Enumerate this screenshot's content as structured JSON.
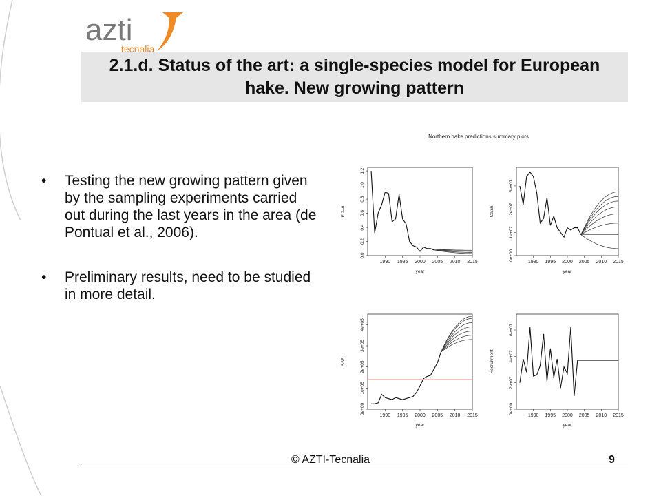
{
  "logo": {
    "brand": "azti",
    "sub": "tecnalia",
    "mark_color": "#f08a24",
    "text_color": "#7a7a7a"
  },
  "title": "2.1.d. Status of the art: a single-species model for European hake. New growing pattern",
  "bullets": [
    "Testing the new growing pattern given by the sampling experiments carried out during the last years in the area (de Pontual et al., 2006).",
    "Preliminary results, need to be studied in more detail."
  ],
  "footer": {
    "copyright": "© AZTI-Tecnalia",
    "page": "9"
  },
  "chart_data": [
    {
      "type": "line",
      "title": "Northern hake predictions summary plots",
      "xlabel": "year",
      "ylabel": "F 2–6",
      "xlim": [
        1985,
        2015
      ],
      "ylim": [
        0,
        1.25
      ],
      "xticks": [
        1990,
        1995,
        2000,
        2005,
        2010,
        2015
      ],
      "yticks": [
        0.0,
        0.2,
        0.4,
        0.6,
        0.8,
        1.0,
        1.2
      ],
      "ytick_labels": [
        "0.0",
        "0.2",
        "0.4",
        "0.6",
        "0.8",
        "1.0",
        "1.2"
      ],
      "series": [
        {
          "x": [
            1986,
            1987,
            1988,
            1989,
            1990,
            1991,
            1992,
            1993,
            1994,
            1995,
            1996,
            1997,
            1998,
            1999,
            2000,
            2001,
            2002,
            2003,
            2004
          ],
          "values": [
            1.2,
            0.32,
            0.6,
            0.72,
            0.9,
            0.88,
            0.48,
            0.52,
            0.87,
            0.52,
            0.45,
            0.2,
            0.14,
            0.12,
            0.06,
            0.12,
            0.1,
            0.1,
            0.08
          ]
        }
      ],
      "projections": {
        "x": [
          2004,
          2015
        ],
        "start": 0.08,
        "ends": [
          0.03,
          0.045,
          0.06,
          0.075,
          0.09
        ]
      }
    },
    {
      "type": "line",
      "xlabel": "year",
      "ylabel": "Catch",
      "xlim": [
        1985,
        2015
      ],
      "ylim": [
        0,
        38000000
      ],
      "xticks": [
        1990,
        1995,
        2000,
        2005,
        2010,
        2015
      ],
      "yticks": [
        0,
        10000000,
        20000000,
        30000000
      ],
      "ytick_labels": [
        "0e+00",
        "1e+07",
        "2e+07",
        "3e+07"
      ],
      "series": [
        {
          "x": [
            1986,
            1987,
            1988,
            1989,
            1990,
            1991,
            1992,
            1993,
            1994,
            1995,
            1996,
            1997,
            1998,
            1999,
            2000,
            2001,
            2002,
            2003,
            2004
          ],
          "values": [
            30000000,
            22000000,
            34000000,
            36000000,
            34000000,
            27000000,
            14000000,
            16000000,
            25000000,
            13000000,
            17000000,
            12000000,
            10000000,
            8000000,
            12000000,
            11000000,
            12000000,
            12000000,
            9000000
          ]
        }
      ],
      "projections": {
        "x": [
          2004,
          2015
        ],
        "start": 9000000,
        "ends": [
          3000000,
          9000000,
          14000000,
          18000000,
          21000000,
          23500000,
          25500000,
          27500000
        ]
      }
    },
    {
      "type": "line",
      "xlabel": "year",
      "ylabel": "SSB",
      "xlim": [
        1985,
        2015
      ],
      "ylim": [
        0,
        450000
      ],
      "xticks": [
        1990,
        1995,
        2000,
        2005,
        2010,
        2015
      ],
      "yticks": [
        0,
        100000,
        200000,
        300000,
        400000
      ],
      "ytick_labels": [
        "0e+00",
        "1e+05",
        "2e+05",
        "3e+05",
        "4e+05"
      ],
      "reference_line": {
        "y": 140000,
        "color": "#e06666"
      },
      "series": [
        {
          "x": [
            1986,
            1987,
            1988,
            1989,
            1990,
            1991,
            1992,
            1993,
            1994,
            1995,
            1996,
            1997,
            1998,
            1999,
            2000,
            2001,
            2002,
            2003,
            2004,
            2005,
            2006
          ],
          "values": [
            25000,
            25000,
            30000,
            70000,
            55000,
            50000,
            45000,
            55000,
            50000,
            45000,
            50000,
            55000,
            60000,
            80000,
            110000,
            145000,
            155000,
            160000,
            190000,
            220000,
            270000
          ]
        }
      ],
      "projections": {
        "x": [
          2006,
          2015
        ],
        "start": 270000,
        "ends": [
          330000,
          350000,
          370000,
          390000,
          410000,
          430000,
          440000
        ]
      }
    },
    {
      "type": "line",
      "xlabel": "year",
      "ylabel": "Recruitment",
      "xlim": [
        1985,
        2015
      ],
      "ylim": [
        0,
        72000000
      ],
      "xticks": [
        1990,
        1995,
        2000,
        2005,
        2010,
        2015
      ],
      "yticks": [
        0,
        20000000,
        40000000,
        60000000
      ],
      "ytick_labels": [
        "0e+00",
        "2e+07",
        "4e+07",
        "6e+07"
      ],
      "series": [
        {
          "x": [
            1986,
            1987,
            1988,
            1989,
            1990,
            1991,
            1992,
            1993,
            1994,
            1995,
            1996,
            1997,
            1998,
            1999,
            2000,
            2001,
            2002,
            2003,
            2004,
            2015
          ],
          "values": [
            20000000,
            38000000,
            28000000,
            62000000,
            25000000,
            26000000,
            33000000,
            57000000,
            21000000,
            46000000,
            24000000,
            38000000,
            16000000,
            32000000,
            27000000,
            62000000,
            10000000,
            37000000,
            37000000,
            37000000
          ]
        }
      ]
    }
  ]
}
